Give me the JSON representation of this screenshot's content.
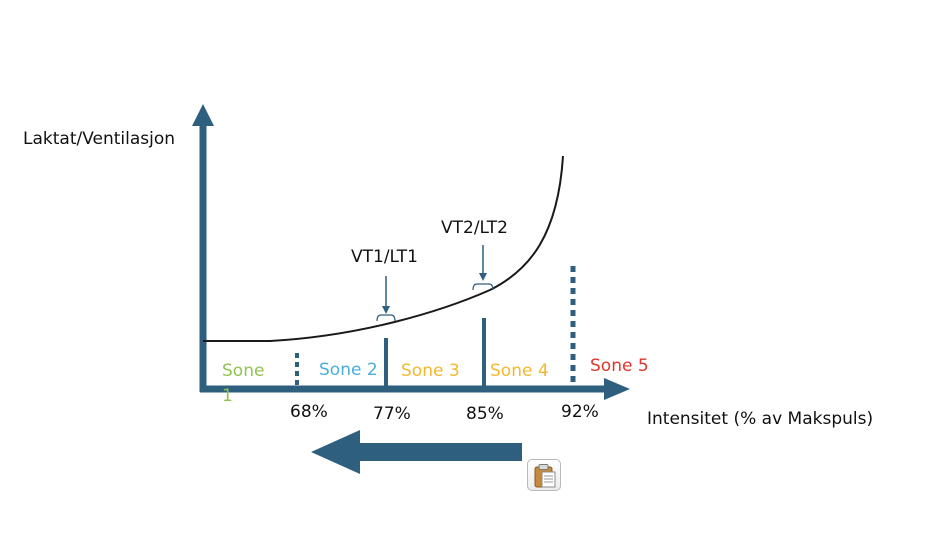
{
  "diagram": {
    "y_axis_label": "Laktat/Ventilasjon",
    "x_axis_label": "Intensitet (% av Makspuls)",
    "thresholds": [
      {
        "label": "VT1/LT1"
      },
      {
        "label": "VT2/LT2"
      }
    ],
    "zones": [
      {
        "line1": "Sone",
        "line2": "1",
        "color": "#92c353"
      },
      {
        "line1": "Sone 2",
        "color": "#4aaee0"
      },
      {
        "line1": "Sone 3",
        "color": "#f2b92f"
      },
      {
        "line1": "Sone 4",
        "color": "#f2b92f"
      },
      {
        "line1": "Sone 5",
        "color": "#e0362b"
      }
    ],
    "percent_ticks": [
      "68%",
      "77%",
      "85%",
      "92%"
    ],
    "axis_color": "#2e5f7e"
  },
  "toolbar": {
    "paste_icon": "clipboard-paste-icon"
  }
}
